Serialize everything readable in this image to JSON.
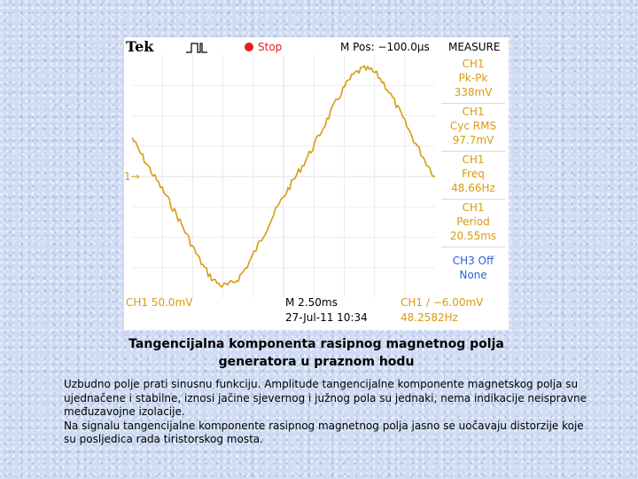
{
  "scope": {
    "brand": "Tek",
    "run_state": "Stop",
    "m_pos": "M Pos: −100.0µs",
    "measure_title": "MEASURE",
    "ch1_marker": "1→",
    "measurements": [
      {
        "ch": "CH1",
        "label": "Pk-Pk",
        "value": "338mV"
      },
      {
        "ch": "CH1",
        "label": "Cyc RMS",
        "value": "97.7mV"
      },
      {
        "ch": "CH1",
        "label": "Freq",
        "value": "48.66Hz"
      },
      {
        "ch": "CH1",
        "label": "Period",
        "value": "20.55ms"
      },
      {
        "ch": "CH3 Off",
        "label": "None",
        "value": ""
      }
    ],
    "bottom": {
      "ch1_scale": "CH1  50.0mV",
      "time_scale": "M 2.50ms",
      "timestamp": "27-Jul-11 10:34",
      "trigger": "CH1 ∕ −6.00mV",
      "trigger_freq": "48.2582Hz"
    },
    "colors": {
      "ch1": "#d79b10",
      "ch3": "#2a5fd6",
      "stop": "#e02020",
      "grid": "#e6e6e6"
    }
  },
  "caption": {
    "title_line1": "Tangencijalna komponenta rasipnog magnetnog polja",
    "title_line2": "generatora u praznom hodu",
    "para1": "Uzbudno polje prati sinusnu funkciju. Amplitude tangencijalne komponente magnetskog polja su ujednačene i stabilne, iznosi jačine sjevernog i južnog pola su jednaki, nema indikacije neispravne međuzavojne izolacije.",
    "para2": "Na signalu tangencijalne komponente rasipnog magnetnog polja jasno se uočavaju distorzije koje su posljedica  rada tiristorskog mosta."
  }
}
